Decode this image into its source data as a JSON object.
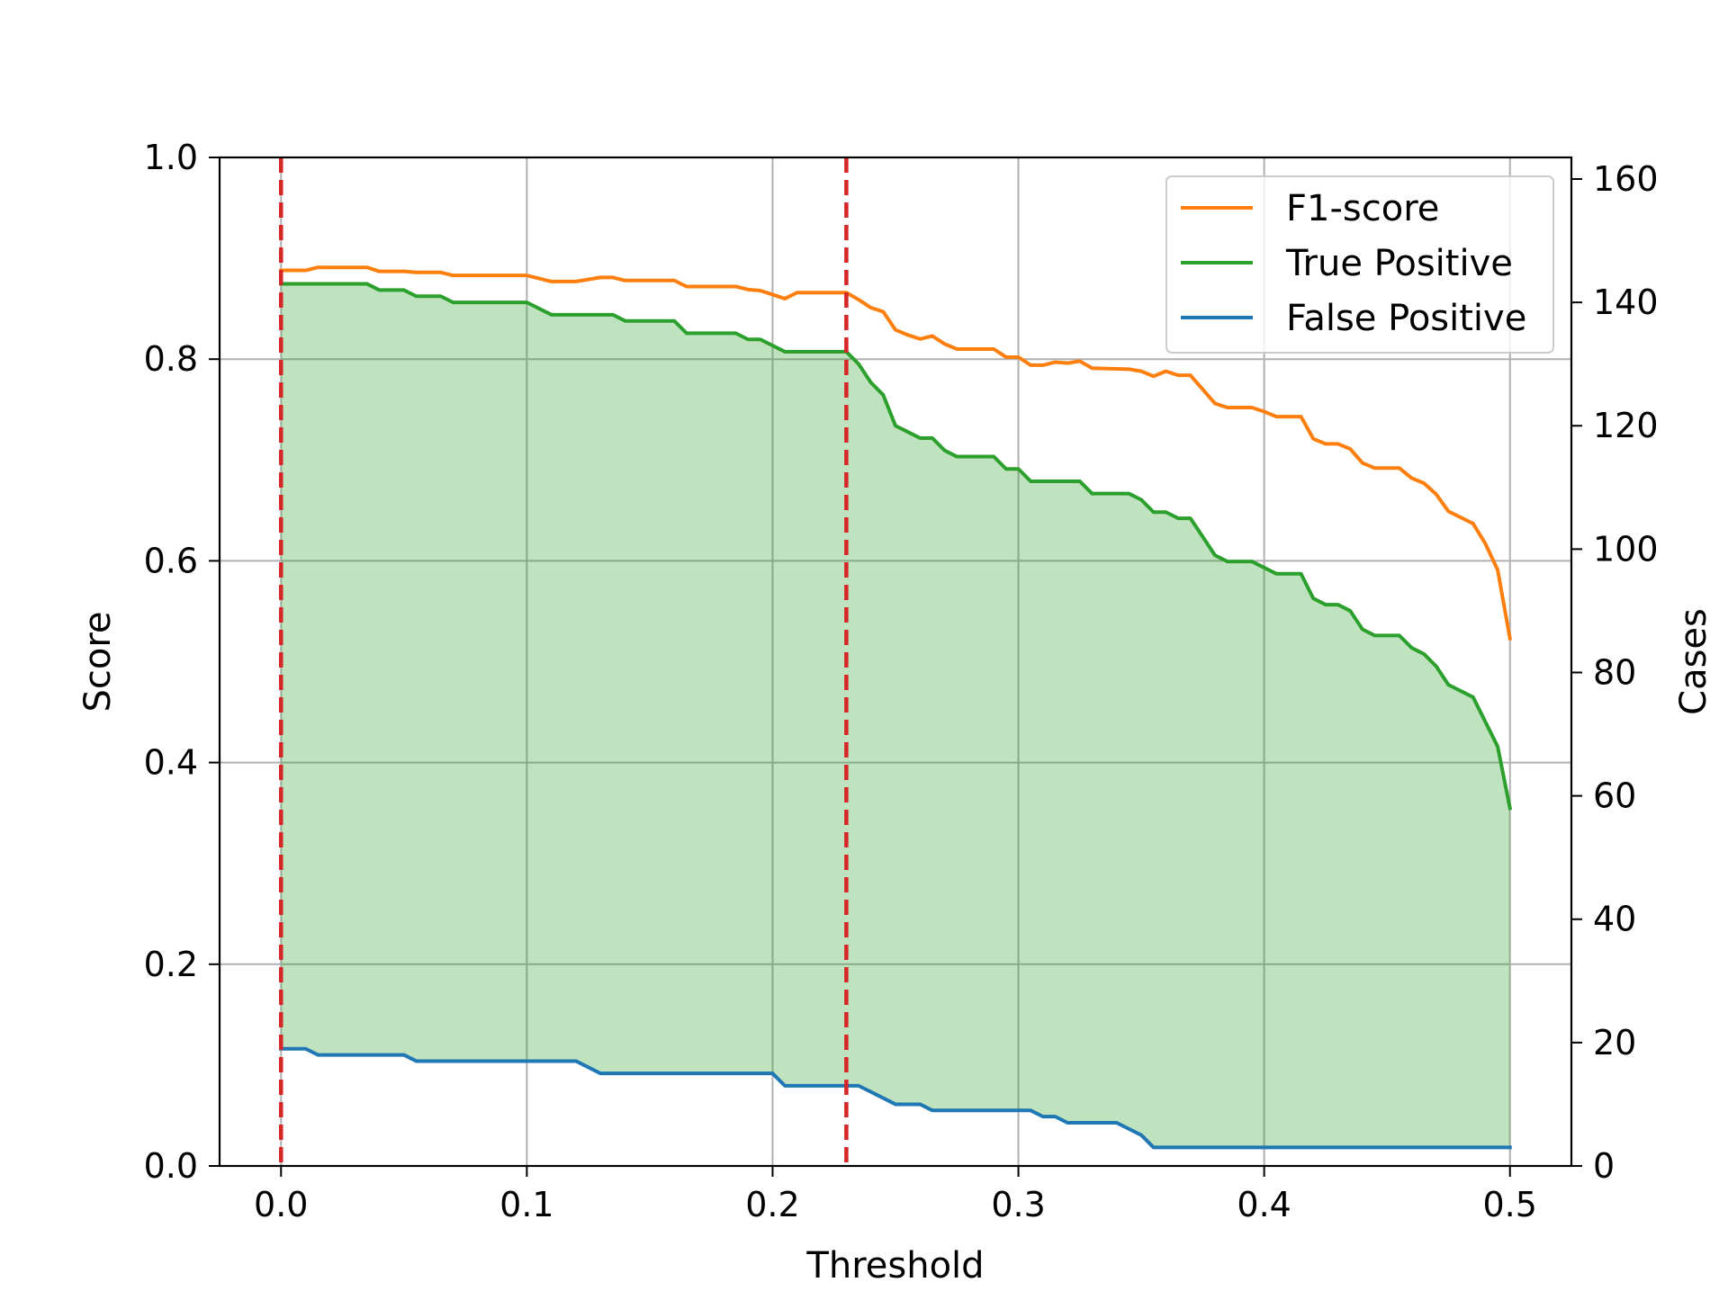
{
  "chart_data": {
    "type": "line",
    "xlabel": "Threshold",
    "ylabel": "Score",
    "y2label": "Cases",
    "xlim": [
      -0.025,
      0.525
    ],
    "ylim": [
      0,
      1.0
    ],
    "y2lim": [
      0,
      163.5
    ],
    "x_ticks": [
      0.0,
      0.1,
      0.2,
      0.3,
      0.4,
      0.5
    ],
    "x_tick_labels": [
      "0.0",
      "0.1",
      "0.2",
      "0.3",
      "0.4",
      "0.5"
    ],
    "y_ticks": [
      0.0,
      0.2,
      0.4,
      0.6,
      0.8,
      1.0
    ],
    "y_tick_labels": [
      "0.0",
      "0.2",
      "0.4",
      "0.6",
      "0.8",
      "1.0"
    ],
    "y2_ticks": [
      0,
      20,
      40,
      60,
      80,
      100,
      120,
      140,
      160
    ],
    "y2_tick_labels": [
      "0",
      "20",
      "40",
      "60",
      "80",
      "100",
      "120",
      "140",
      "160"
    ],
    "grid": true,
    "legend_position": "top-right",
    "vlines": [
      0.0,
      0.23
    ],
    "fill_between": {
      "upper": "True Positive",
      "lower": "False Positive",
      "color": "#2ca02c"
    },
    "colors": {
      "f1": "#ff7f0e",
      "tp": "#2ca02c",
      "fp": "#1f77b4",
      "vline": "#d62728"
    },
    "series": [
      {
        "name": "F1-score",
        "axis": "left",
        "color": "#ff7f0e",
        "points": [
          [
            0,
            0.888
          ],
          [
            0.01,
            0.888
          ],
          [
            0.015,
            0.891
          ],
          [
            0.035,
            0.891
          ],
          [
            0.04,
            0.887
          ],
          [
            0.05,
            0.887
          ],
          [
            0.055,
            0.886
          ],
          [
            0.065,
            0.886
          ],
          [
            0.07,
            0.883
          ],
          [
            0.1,
            0.883
          ],
          [
            0.11,
            0.877
          ],
          [
            0.12,
            0.877
          ],
          [
            0.13,
            0.881
          ],
          [
            0.135,
            0.881
          ],
          [
            0.14,
            0.878
          ],
          [
            0.16,
            0.878
          ],
          [
            0.165,
            0.872
          ],
          [
            0.185,
            0.872
          ],
          [
            0.19,
            0.869
          ],
          [
            0.195,
            0.868
          ],
          [
            0.2,
            0.864
          ],
          [
            0.205,
            0.86
          ],
          [
            0.21,
            0.866
          ],
          [
            0.23,
            0.866
          ],
          [
            0.235,
            0.859
          ],
          [
            0.24,
            0.851
          ],
          [
            0.245,
            0.847
          ],
          [
            0.25,
            0.829
          ],
          [
            0.255,
            0.824
          ],
          [
            0.26,
            0.82
          ],
          [
            0.265,
            0.823
          ],
          [
            0.27,
            0.815
          ],
          [
            0.275,
            0.81
          ],
          [
            0.29,
            0.81
          ],
          [
            0.295,
            0.802
          ],
          [
            0.3,
            0.802
          ],
          [
            0.305,
            0.794
          ],
          [
            0.31,
            0.794
          ],
          [
            0.315,
            0.797
          ],
          [
            0.32,
            0.796
          ],
          [
            0.325,
            0.798
          ],
          [
            0.33,
            0.791
          ],
          [
            0.345,
            0.79
          ],
          [
            0.35,
            0.788
          ],
          [
            0.355,
            0.783
          ],
          [
            0.36,
            0.788
          ],
          [
            0.365,
            0.784
          ],
          [
            0.37,
            0.784
          ],
          [
            0.375,
            0.77
          ],
          [
            0.38,
            0.756
          ],
          [
            0.385,
            0.752
          ],
          [
            0.395,
            0.752
          ],
          [
            0.4,
            0.748
          ],
          [
            0.405,
            0.743
          ],
          [
            0.415,
            0.743
          ],
          [
            0.42,
            0.721
          ],
          [
            0.425,
            0.716
          ],
          [
            0.43,
            0.716
          ],
          [
            0.435,
            0.711
          ],
          [
            0.44,
            0.697
          ],
          [
            0.445,
            0.692
          ],
          [
            0.455,
            0.692
          ],
          [
            0.46,
            0.682
          ],
          [
            0.465,
            0.677
          ],
          [
            0.47,
            0.666
          ],
          [
            0.475,
            0.649
          ],
          [
            0.48,
            0.643
          ],
          [
            0.485,
            0.637
          ],
          [
            0.49,
            0.617
          ],
          [
            0.495,
            0.591
          ],
          [
            0.5,
            0.523
          ]
        ]
      },
      {
        "name": "True Positive",
        "axis": "right",
        "color": "#2ca02c",
        "points": [
          [
            0,
            143
          ],
          [
            0.035,
            143
          ],
          [
            0.04,
            142
          ],
          [
            0.05,
            142
          ],
          [
            0.055,
            141
          ],
          [
            0.065,
            141
          ],
          [
            0.07,
            140
          ],
          [
            0.1,
            140
          ],
          [
            0.11,
            138
          ],
          [
            0.135,
            138
          ],
          [
            0.14,
            137
          ],
          [
            0.16,
            137
          ],
          [
            0.165,
            135
          ],
          [
            0.185,
            135
          ],
          [
            0.19,
            134
          ],
          [
            0.195,
            134
          ],
          [
            0.205,
            132
          ],
          [
            0.23,
            132
          ],
          [
            0.235,
            130
          ],
          [
            0.24,
            127
          ],
          [
            0.245,
            125
          ],
          [
            0.25,
            120
          ],
          [
            0.255,
            119
          ],
          [
            0.26,
            118
          ],
          [
            0.265,
            118
          ],
          [
            0.27,
            116
          ],
          [
            0.275,
            115
          ],
          [
            0.29,
            115
          ],
          [
            0.295,
            113
          ],
          [
            0.3,
            113
          ],
          [
            0.305,
            111
          ],
          [
            0.325,
            111
          ],
          [
            0.33,
            109
          ],
          [
            0.345,
            109
          ],
          [
            0.35,
            108
          ],
          [
            0.355,
            106
          ],
          [
            0.36,
            106
          ],
          [
            0.365,
            105
          ],
          [
            0.37,
            105
          ],
          [
            0.375,
            102
          ],
          [
            0.38,
            99
          ],
          [
            0.385,
            98
          ],
          [
            0.395,
            98
          ],
          [
            0.4,
            97
          ],
          [
            0.405,
            96
          ],
          [
            0.415,
            96
          ],
          [
            0.42,
            92
          ],
          [
            0.425,
            91
          ],
          [
            0.43,
            91
          ],
          [
            0.435,
            90
          ],
          [
            0.44,
            87
          ],
          [
            0.445,
            86
          ],
          [
            0.455,
            86
          ],
          [
            0.46,
            84
          ],
          [
            0.465,
            83
          ],
          [
            0.47,
            81
          ],
          [
            0.475,
            78
          ],
          [
            0.48,
            77
          ],
          [
            0.485,
            76
          ],
          [
            0.49,
            72
          ],
          [
            0.495,
            68
          ],
          [
            0.5,
            58
          ]
        ]
      },
      {
        "name": "False Positive",
        "axis": "right",
        "color": "#1f77b4",
        "points": [
          [
            0,
            19
          ],
          [
            0.01,
            19
          ],
          [
            0.015,
            18
          ],
          [
            0.05,
            18
          ],
          [
            0.055,
            17
          ],
          [
            0.12,
            17
          ],
          [
            0.13,
            15
          ],
          [
            0.2,
            15
          ],
          [
            0.205,
            13
          ],
          [
            0.235,
            13
          ],
          [
            0.24,
            12
          ],
          [
            0.25,
            10
          ],
          [
            0.26,
            10
          ],
          [
            0.265,
            9
          ],
          [
            0.305,
            9
          ],
          [
            0.31,
            8
          ],
          [
            0.315,
            8
          ],
          [
            0.32,
            7
          ],
          [
            0.34,
            7
          ],
          [
            0.345,
            6
          ],
          [
            0.35,
            5
          ],
          [
            0.355,
            3
          ],
          [
            0.5,
            3
          ]
        ]
      }
    ]
  }
}
